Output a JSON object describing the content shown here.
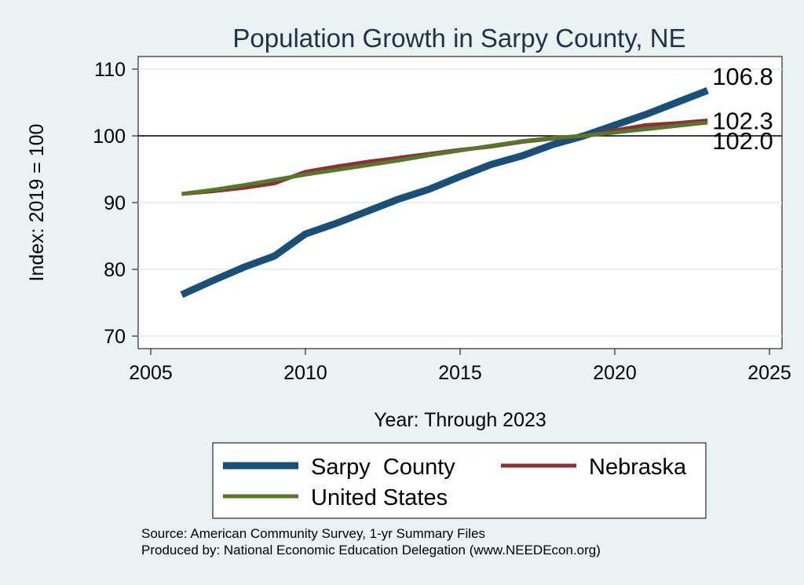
{
  "chart_data": {
    "type": "line",
    "title": "Population Growth in Sarpy County, NE",
    "xlabel": "Year: Through 2023",
    "ylabel": "Index: 2019 = 100",
    "xlim": [
      2005,
      2025
    ],
    "ylim": [
      70,
      110
    ],
    "xticks": [
      2005,
      2010,
      2015,
      2020,
      2025
    ],
    "yticks": [
      70,
      80,
      90,
      100,
      110
    ],
    "reference_line": 100,
    "grid": true,
    "legend_position": "bottom",
    "series": [
      {
        "name": "Sarpy  County",
        "color": "#1a4f77",
        "x": [
          2006,
          2007,
          2008,
          2009,
          2010,
          2011,
          2012,
          2013,
          2014,
          2015,
          2016,
          2017,
          2018,
          2019,
          2021,
          2022,
          2023
        ],
        "y": [
          76.2,
          78.3,
          80.3,
          82.0,
          85.3,
          86.9,
          88.7,
          90.5,
          92.0,
          93.9,
          95.7,
          97.0,
          98.7,
          100.0,
          103.2,
          105.0,
          106.8
        ],
        "end_label": "106.8"
      },
      {
        "name": "Nebraska",
        "color": "#8e2e36",
        "x": [
          2006,
          2007,
          2008,
          2009,
          2010,
          2011,
          2012,
          2013,
          2014,
          2015,
          2016,
          2017,
          2018,
          2019,
          2021,
          2022,
          2023
        ],
        "y": [
          91.3,
          91.7,
          92.2,
          92.9,
          94.6,
          95.4,
          96.1,
          96.7,
          97.3,
          97.9,
          98.4,
          99.1,
          99.6,
          100.0,
          101.6,
          101.9,
          102.3
        ],
        "end_label": "102.3"
      },
      {
        "name": "United States",
        "color": "#55782a",
        "x": [
          2006,
          2007,
          2008,
          2009,
          2010,
          2011,
          2012,
          2013,
          2014,
          2015,
          2016,
          2017,
          2018,
          2019,
          2021,
          2022,
          2023
        ],
        "y": [
          91.3,
          91.9,
          92.6,
          93.4,
          94.2,
          94.9,
          95.6,
          96.3,
          97.1,
          97.8,
          98.5,
          99.2,
          99.7,
          100.0,
          101.0,
          101.5,
          102.0
        ],
        "end_label": "102.0"
      }
    ]
  },
  "source": {
    "line1": "Source: American Community Survey, 1-yr Summary Files",
    "line2": "Produced by: National Economic Education Delegation (www.NEEDEcon.org)"
  }
}
